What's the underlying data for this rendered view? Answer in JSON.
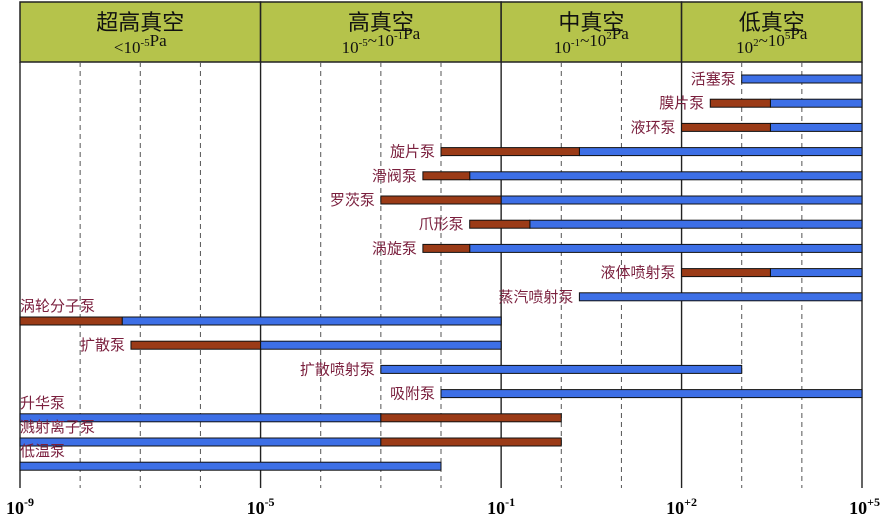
{
  "chart_data": {
    "type": "bar",
    "subtype": "range-gantt",
    "x_scale": "log",
    "xlim": [
      "1e-9",
      "1e+5"
    ],
    "x_major_ticks": [
      {
        "value": "1e-9",
        "base": "10",
        "exp": "-9"
      },
      {
        "value": "1e-5",
        "base": "10",
        "exp": "-5"
      },
      {
        "value": "1e-1",
        "base": "10",
        "exp": "-1"
      },
      {
        "value": "1e+2",
        "base": "10",
        "exp": "+2"
      },
      {
        "value": "1e+5",
        "base": "10",
        "exp": "+5"
      }
    ],
    "x_minor_gridlines": [
      "1e-8",
      "1e-7",
      "1e-6",
      "1e-4",
      "1e-3",
      "1e-2",
      "1e0",
      "1e1",
      "1e3",
      "1e4"
    ],
    "vacuum_regions": [
      {
        "name": "超高真空",
        "range_prefix": "<10",
        "range_exp1": "-5",
        "range_mid": "Pa",
        "range_exp2": "",
        "range_tail": "",
        "from": "1e-9",
        "to": "1e-5"
      },
      {
        "name": "高真空",
        "range_prefix": "10",
        "range_exp1": "-5",
        "range_mid": "~10",
        "range_exp2": "-1",
        "range_tail": "Pa",
        "from": "1e-5",
        "to": "1e-1"
      },
      {
        "name": "中真空",
        "range_prefix": "10",
        "range_exp1": "-1",
        "range_mid": "~10",
        "range_exp2": "2",
        "range_tail": "Pa",
        "from": "1e-1",
        "to": "1e+2"
      },
      {
        "name": "低真空",
        "range_prefix": "10",
        "range_exp1": "2",
        "range_mid": "~10",
        "range_exp2": "5",
        "range_tail": "Pa",
        "from": "1e+2",
        "to": "1e+5"
      }
    ],
    "colors": {
      "header_fill": "#b5c34b",
      "header_border": "#222222",
      "grid": "#555555",
      "extended_range": "#9b3b17",
      "working_range": "#3d6fe6",
      "label_text": "#7a1f3d"
    },
    "legend": {
      "extended_range": "",
      "working_range": ""
    },
    "series": [
      {
        "name": "活塞泵",
        "label_align": "end",
        "label_row_offset": 0,
        "extended": null,
        "working": [
          "1e+3",
          "1e+5"
        ]
      },
      {
        "name": "膜片泵",
        "label_align": "end",
        "label_row_offset": 0,
        "extended": [
          "3e+2",
          "3e+3"
        ],
        "working": [
          "3e+3",
          "1e+5"
        ]
      },
      {
        "name": "液环泵",
        "label_align": "end",
        "label_row_offset": 0,
        "extended": [
          "1e+2",
          "3e+3"
        ],
        "working": [
          "3e+3",
          "1e+5"
        ]
      },
      {
        "name": "旋片泵",
        "label_align": "end",
        "label_row_offset": 0,
        "extended": [
          "1e-2",
          "2"
        ],
        "working": [
          "2",
          "1e+5"
        ]
      },
      {
        "name": "滑阀泵",
        "label_align": "end",
        "label_row_offset": 0,
        "extended": [
          "5e-3",
          "3e-2"
        ],
        "working": [
          "3e-2",
          "1e+5"
        ]
      },
      {
        "name": "罗茨泵",
        "label_align": "end",
        "label_row_offset": 0,
        "extended": [
          "1e-3",
          "1e-1"
        ],
        "working": [
          "1e-1",
          "1e+5"
        ]
      },
      {
        "name": "爪形泵",
        "label_align": "end",
        "label_row_offset": 0,
        "extended": [
          "3e-2",
          "3e-1"
        ],
        "working": [
          "3e-1",
          "1e+5"
        ]
      },
      {
        "name": "涡旋泵",
        "label_align": "end",
        "label_row_offset": 0,
        "extended": [
          "5e-3",
          "3e-2"
        ],
        "working": [
          "3e-2",
          "1e+5"
        ]
      },
      {
        "name": "液体喷射泵",
        "label_align": "end",
        "label_row_offset": 0,
        "extended": [
          "1e+2",
          "3e+3"
        ],
        "working": [
          "3e+3",
          "1e+5"
        ]
      },
      {
        "name": "蒸汽喷射泵",
        "label_align": "end",
        "label_row_offset": 0,
        "extended": null,
        "working": [
          "2",
          "1e+5"
        ]
      },
      {
        "name": "涡轮分子泵",
        "label_align": "start",
        "label_row_offset": 0,
        "extended": [
          "1e-9",
          "5e-8"
        ],
        "working": [
          "5e-8",
          "1e-1"
        ]
      },
      {
        "name": "扩散泵",
        "label_align": "end",
        "label_row_offset": 0,
        "extended": [
          "7e-8",
          "1e-5"
        ],
        "working": [
          "1e-5",
          "1e-1"
        ]
      },
      {
        "name": "扩散喷射泵",
        "label_align": "end",
        "label_row_offset": 0,
        "extended": null,
        "working": [
          "1e-3",
          "1e+3"
        ]
      },
      {
        "name": "吸附泵",
        "label_align": "end",
        "label_row_offset": 0,
        "extended": null,
        "working": [
          "1e-2",
          "1e+5"
        ]
      },
      {
        "name": "升华泵",
        "label_align": "start",
        "label_row_offset": -1,
        "extended": [
          "1e-3",
          "1e0"
        ],
        "working": [
          "1e-9",
          "1e-3"
        ]
      },
      {
        "name": "溅射离子泵",
        "label_align": "start",
        "label_row_offset": -1,
        "extended": [
          "1e-3",
          "1e0"
        ],
        "working": [
          "1e-9",
          "1e-3"
        ]
      },
      {
        "name": "低温泵",
        "label_align": "start",
        "label_row_offset": -1,
        "extended": null,
        "working": [
          "1e-9",
          "1e-2"
        ]
      }
    ]
  }
}
